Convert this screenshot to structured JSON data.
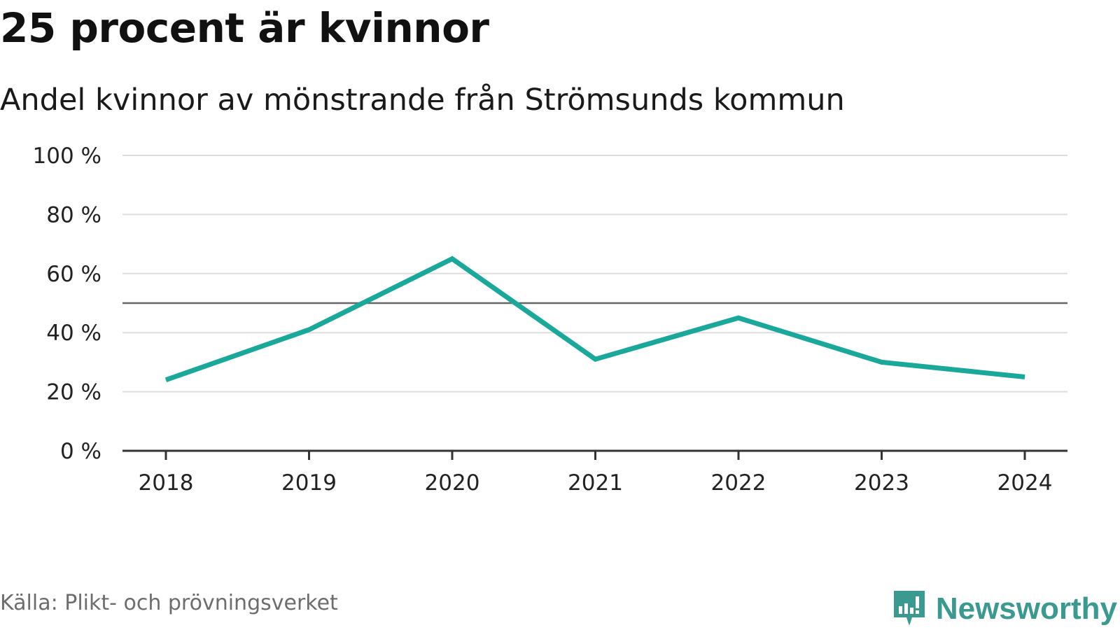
{
  "header": {
    "title": "25 procent är kvinnor",
    "subtitle": "Andel kvinnor av mönstrande från Strömsunds kommun"
  },
  "footer": {
    "source": "Källa: Plikt- och prövningsverket",
    "brand": "Newsworthy",
    "brand_icon": "newsworthy-logo-icon"
  },
  "colors": {
    "line": "#1aa89a",
    "reference_line": "#666666",
    "grid": "#dddddd",
    "axis": "#333333",
    "brand": "#3a9a8f"
  },
  "chart_data": {
    "type": "line",
    "title": "25 procent är kvinnor",
    "subtitle": "Andel kvinnor av mönstrande från Strömsunds kommun",
    "xlabel": "",
    "ylabel": "",
    "categories": [
      "2018",
      "2019",
      "2020",
      "2021",
      "2022",
      "2023",
      "2024"
    ],
    "series": [
      {
        "values": [
          24,
          41,
          65,
          31,
          45,
          30,
          25
        ]
      }
    ],
    "ylim": [
      0,
      100
    ],
    "yticks": [
      0,
      20,
      40,
      60,
      80,
      100
    ],
    "ytick_labels": [
      "0 %",
      "20 %",
      "40 %",
      "60 %",
      "80 %",
      "100 %"
    ],
    "reference_line": 50,
    "grid": true,
    "legend": "none"
  }
}
